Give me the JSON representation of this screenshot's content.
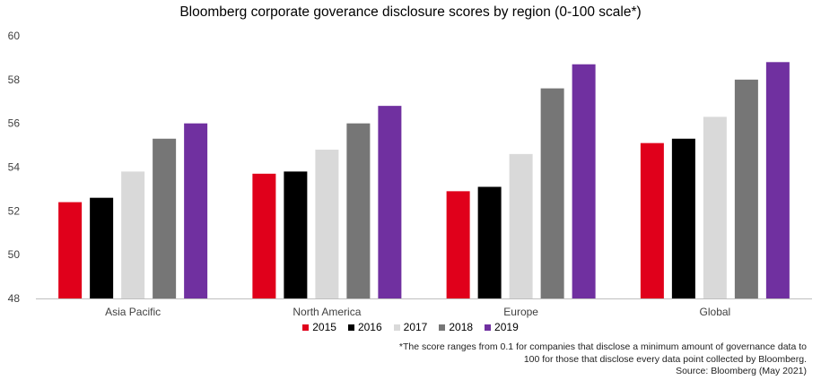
{
  "chart_data": {
    "type": "bar",
    "title": "Bloomberg corporate goverance disclosure scores by region (0-100 scale*)",
    "categories": [
      "Asia Pacific",
      "North America",
      "Europe",
      "Global"
    ],
    "series": [
      {
        "name": "2015",
        "color": "#e0001b",
        "values": [
          52.4,
          53.7,
          52.9,
          55.1
        ]
      },
      {
        "name": "2016",
        "color": "#000000",
        "values": [
          52.6,
          53.8,
          53.1,
          55.3
        ]
      },
      {
        "name": "2017",
        "color": "#d9d9d9",
        "values": [
          53.8,
          54.8,
          54.6,
          56.3
        ]
      },
      {
        "name": "2018",
        "color": "#767676",
        "values": [
          55.3,
          56.0,
          57.6,
          58.0
        ]
      },
      {
        "name": "2019",
        "color": "#7030a0",
        "values": [
          56.0,
          56.8,
          58.7,
          58.8
        ]
      }
    ],
    "ylim": [
      48,
      60
    ],
    "yticks": [
      48,
      50,
      52,
      54,
      56,
      58,
      60
    ],
    "grid": false,
    "legend_position": "bottom"
  },
  "footnote": {
    "line1": "*The score ranges from 0.1 for companies that disclose a minimum amount of governance data to",
    "line2": "100 for those that disclose every data point collected by Bloomberg.",
    "source": "Source: Bloomberg (May 2021)"
  }
}
